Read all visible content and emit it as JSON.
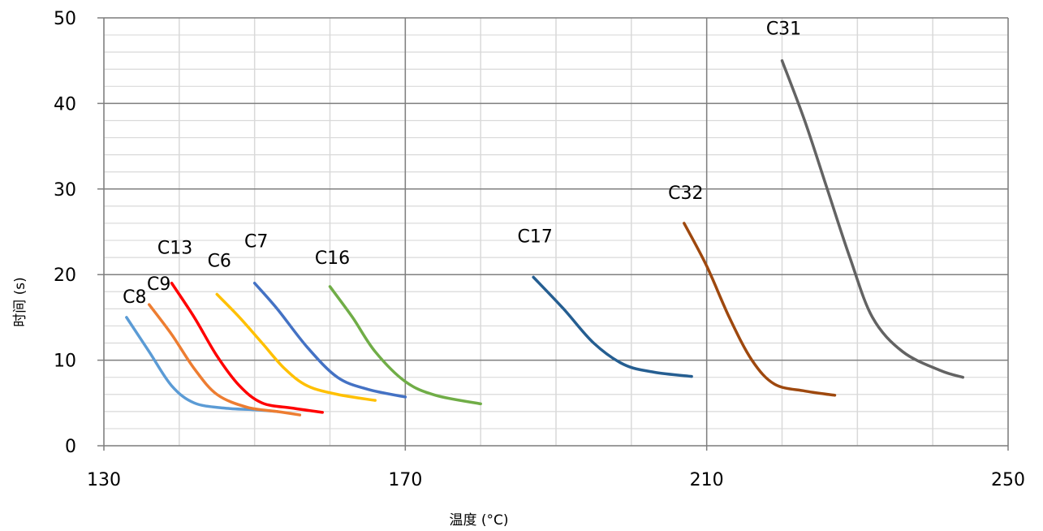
{
  "chart_data": {
    "type": "line",
    "title": "",
    "xlabel": "温度 (°C)",
    "ylabel": "时间 (s)",
    "xlim": [
      130,
      250
    ],
    "ylim": [
      0,
      50
    ],
    "x_ticks": [
      130,
      170,
      210,
      250
    ],
    "y_ticks": [
      0,
      10,
      20,
      30,
      40,
      50
    ],
    "grid": true,
    "legend": "none (series labelled directly on chart)",
    "series": [
      {
        "name": "C8",
        "color": "#5B9BD5",
        "points": [
          [
            133,
            15
          ],
          [
            136,
            11
          ],
          [
            139,
            7
          ],
          [
            142,
            5
          ],
          [
            146,
            4.4
          ],
          [
            150,
            4.2
          ],
          [
            153,
            4.0
          ]
        ]
      },
      {
        "name": "C9",
        "color": "#ED7D31",
        "points": [
          [
            136,
            16.5
          ],
          [
            139,
            13
          ],
          [
            142,
            9
          ],
          [
            145,
            6
          ],
          [
            149,
            4.5
          ],
          [
            153,
            4.0
          ],
          [
            156,
            3.6
          ]
        ]
      },
      {
        "name": "C13",
        "color": "#FF0000",
        "points": [
          [
            139,
            19
          ],
          [
            142,
            15
          ],
          [
            145,
            10.5
          ],
          [
            148,
            7
          ],
          [
            151,
            5
          ],
          [
            155,
            4.4
          ],
          [
            159,
            3.9
          ]
        ]
      },
      {
        "name": "C6",
        "color": "#FFC000",
        "points": [
          [
            145,
            17.7
          ],
          [
            148,
            15
          ],
          [
            151,
            12
          ],
          [
            154,
            9
          ],
          [
            157,
            7
          ],
          [
            161,
            6
          ],
          [
            166,
            5.3
          ]
        ]
      },
      {
        "name": "C7",
        "color": "#4472C4",
        "points": [
          [
            150,
            19
          ],
          [
            153,
            16
          ],
          [
            157,
            11.5
          ],
          [
            161,
            8
          ],
          [
            165,
            6.6
          ],
          [
            170,
            5.7
          ]
        ]
      },
      {
        "name": "C16",
        "color": "#70AD47",
        "points": [
          [
            160,
            18.6
          ],
          [
            163,
            15
          ],
          [
            166,
            11
          ],
          [
            170,
            7.5
          ],
          [
            174,
            5.9
          ],
          [
            180,
            4.9
          ]
        ]
      },
      {
        "name": "C17",
        "color": "#255E91",
        "points": [
          [
            187,
            19.7
          ],
          [
            191,
            16
          ],
          [
            195,
            12
          ],
          [
            199,
            9.5
          ],
          [
            203,
            8.6
          ],
          [
            208,
            8.1
          ]
        ]
      },
      {
        "name": "C32",
        "color": "#9E480E",
        "points": [
          [
            207,
            26
          ],
          [
            210,
            21
          ],
          [
            213,
            15
          ],
          [
            216,
            10
          ],
          [
            219,
            7.2
          ],
          [
            223,
            6.4
          ],
          [
            227,
            5.9
          ]
        ]
      },
      {
        "name": "C31",
        "color": "#636363",
        "points": [
          [
            220,
            45
          ],
          [
            223,
            38
          ],
          [
            226,
            30
          ],
          [
            229,
            22
          ],
          [
            232,
            15
          ],
          [
            236,
            11
          ],
          [
            241,
            8.8
          ],
          [
            244,
            8.0
          ]
        ]
      }
    ],
    "annotations": [
      "C8",
      "C9",
      "C13",
      "C6",
      "C7",
      "C16",
      "C17",
      "C32",
      "C31"
    ]
  }
}
